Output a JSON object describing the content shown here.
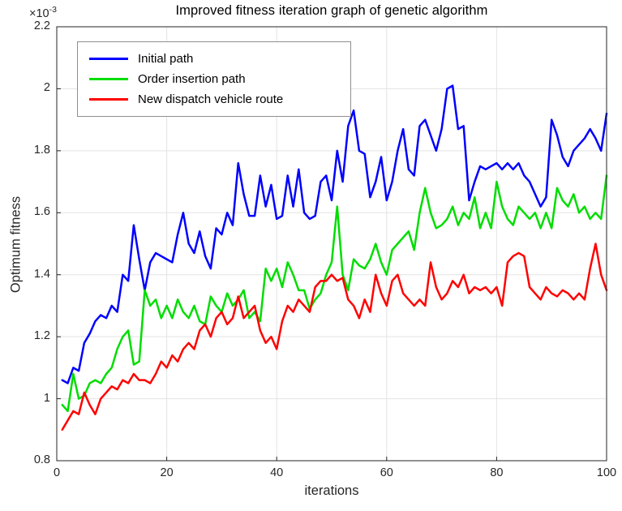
{
  "figure": {
    "title": "Improved fitness iteration graph of genetic algorithm",
    "xlabel": "iterations",
    "ylabel": "Optimum fitness",
    "y_exponent_base": "×10",
    "y_exponent_power": "-3",
    "background_color": "#ffffff",
    "axis_color": "#262626",
    "grid_color": "#e3e3e3"
  },
  "chart_data": {
    "type": "line",
    "title": "Improved fitness iteration graph of genetic algorithm",
    "xlabel": "iterations",
    "ylabel": "Optimum fitness",
    "y_unit_scale": "1e-3",
    "xlim": [
      0,
      100
    ],
    "ylim": [
      0.8,
      2.2
    ],
    "x_ticks": [
      0,
      20,
      40,
      60,
      80,
      100
    ],
    "y_ticks": [
      0.8,
      1,
      1.2,
      1.4,
      1.6,
      1.8,
      2,
      2.2
    ],
    "grid": true,
    "legend_position": "top-left-inside",
    "x": [
      1,
      2,
      3,
      4,
      5,
      6,
      7,
      8,
      9,
      10,
      11,
      12,
      13,
      14,
      15,
      16,
      17,
      18,
      19,
      20,
      21,
      22,
      23,
      24,
      25,
      26,
      27,
      28,
      29,
      30,
      31,
      32,
      33,
      34,
      35,
      36,
      37,
      38,
      39,
      40,
      41,
      42,
      43,
      44,
      45,
      46,
      47,
      48,
      49,
      50,
      51,
      52,
      53,
      54,
      55,
      56,
      57,
      58,
      59,
      60,
      61,
      62,
      63,
      64,
      65,
      66,
      67,
      68,
      69,
      70,
      71,
      72,
      73,
      74,
      75,
      76,
      77,
      78,
      79,
      80,
      81,
      82,
      83,
      84,
      85,
      86,
      87,
      88,
      89,
      90,
      91,
      92,
      93,
      94,
      95,
      96,
      97,
      98,
      99,
      100
    ],
    "series": [
      {
        "name": "Initial path",
        "color": "#0000ff",
        "line_width": 2.5,
        "values": [
          1.06,
          1.05,
          1.1,
          1.09,
          1.18,
          1.21,
          1.25,
          1.27,
          1.26,
          1.3,
          1.28,
          1.4,
          1.38,
          1.56,
          1.45,
          1.35,
          1.44,
          1.47,
          1.46,
          1.45,
          1.44,
          1.53,
          1.6,
          1.5,
          1.47,
          1.54,
          1.46,
          1.42,
          1.55,
          1.53,
          1.6,
          1.56,
          1.76,
          1.66,
          1.59,
          1.59,
          1.72,
          1.62,
          1.69,
          1.58,
          1.59,
          1.72,
          1.62,
          1.74,
          1.6,
          1.58,
          1.59,
          1.7,
          1.72,
          1.64,
          1.8,
          1.7,
          1.88,
          1.93,
          1.8,
          1.79,
          1.65,
          1.7,
          1.78,
          1.64,
          1.7,
          1.8,
          1.87,
          1.74,
          1.72,
          1.88,
          1.9,
          1.85,
          1.8,
          1.87,
          2.0,
          2.01,
          1.87,
          1.88,
          1.64,
          1.7,
          1.75,
          1.74,
          1.75,
          1.76,
          1.74,
          1.76,
          1.74,
          1.76,
          1.72,
          1.7,
          1.66,
          1.62,
          1.65,
          1.9,
          1.85,
          1.78,
          1.75,
          1.8,
          1.82,
          1.84,
          1.87,
          1.84,
          1.8,
          1.92
        ]
      },
      {
        "name": "Order insertion path",
        "color": "#00dd00",
        "line_width": 2.5,
        "values": [
          0.98,
          0.96,
          1.08,
          1.0,
          1.01,
          1.05,
          1.06,
          1.05,
          1.08,
          1.1,
          1.16,
          1.2,
          1.22,
          1.11,
          1.12,
          1.35,
          1.3,
          1.32,
          1.26,
          1.3,
          1.26,
          1.32,
          1.28,
          1.26,
          1.3,
          1.25,
          1.24,
          1.33,
          1.3,
          1.28,
          1.34,
          1.3,
          1.32,
          1.35,
          1.26,
          1.28,
          1.25,
          1.42,
          1.38,
          1.42,
          1.36,
          1.44,
          1.4,
          1.35,
          1.35,
          1.29,
          1.32,
          1.34,
          1.4,
          1.44,
          1.62,
          1.4,
          1.35,
          1.45,
          1.43,
          1.42,
          1.45,
          1.5,
          1.44,
          1.4,
          1.48,
          1.5,
          1.52,
          1.54,
          1.48,
          1.6,
          1.68,
          1.6,
          1.55,
          1.56,
          1.58,
          1.62,
          1.56,
          1.6,
          1.58,
          1.65,
          1.55,
          1.6,
          1.55,
          1.7,
          1.62,
          1.58,
          1.56,
          1.62,
          1.6,
          1.58,
          1.6,
          1.55,
          1.6,
          1.55,
          1.68,
          1.64,
          1.62,
          1.66,
          1.6,
          1.62,
          1.58,
          1.6,
          1.58,
          1.72
        ]
      },
      {
        "name": "New dispatch vehicle route",
        "color": "#ff0000",
        "line_width": 2.5,
        "values": [
          0.9,
          0.93,
          0.96,
          0.95,
          1.02,
          0.98,
          0.95,
          1.0,
          1.02,
          1.04,
          1.03,
          1.06,
          1.05,
          1.08,
          1.06,
          1.06,
          1.05,
          1.08,
          1.12,
          1.1,
          1.14,
          1.12,
          1.16,
          1.18,
          1.16,
          1.22,
          1.24,
          1.2,
          1.26,
          1.28,
          1.24,
          1.26,
          1.33,
          1.26,
          1.28,
          1.3,
          1.22,
          1.18,
          1.2,
          1.16,
          1.25,
          1.3,
          1.28,
          1.32,
          1.3,
          1.28,
          1.36,
          1.38,
          1.38,
          1.4,
          1.38,
          1.39,
          1.32,
          1.3,
          1.26,
          1.32,
          1.28,
          1.4,
          1.34,
          1.3,
          1.38,
          1.4,
          1.34,
          1.32,
          1.3,
          1.32,
          1.3,
          1.44,
          1.36,
          1.32,
          1.34,
          1.38,
          1.36,
          1.4,
          1.34,
          1.36,
          1.35,
          1.36,
          1.34,
          1.36,
          1.3,
          1.44,
          1.46,
          1.47,
          1.46,
          1.36,
          1.34,
          1.32,
          1.36,
          1.34,
          1.33,
          1.35,
          1.34,
          1.32,
          1.34,
          1.32,
          1.42,
          1.5,
          1.4,
          1.35
        ]
      }
    ]
  }
}
